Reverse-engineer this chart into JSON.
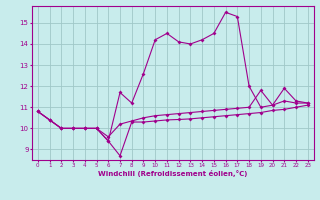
{
  "x": [
    0,
    1,
    2,
    3,
    4,
    5,
    6,
    7,
    8,
    9,
    10,
    11,
    12,
    13,
    14,
    15,
    16,
    17,
    18,
    19,
    20,
    21,
    22,
    23
  ],
  "curve1": [
    10.8,
    10.4,
    10.0,
    10.0,
    10.0,
    10.0,
    9.4,
    8.7,
    10.3,
    10.3,
    10.35,
    10.4,
    10.42,
    10.45,
    10.5,
    10.55,
    10.6,
    10.65,
    10.7,
    10.75,
    10.85,
    10.9,
    11.0,
    11.1
  ],
  "curve2": [
    10.8,
    10.4,
    10.0,
    10.0,
    10.0,
    10.0,
    9.4,
    11.7,
    11.2,
    12.6,
    14.2,
    14.5,
    14.1,
    14.0,
    14.2,
    14.5,
    15.5,
    15.3,
    12.0,
    11.0,
    11.1,
    11.9,
    11.3,
    11.2
  ],
  "curve3": [
    10.8,
    10.4,
    10.0,
    10.0,
    10.0,
    10.0,
    9.6,
    10.2,
    10.35,
    10.5,
    10.6,
    10.65,
    10.7,
    10.75,
    10.8,
    10.85,
    10.9,
    10.95,
    11.0,
    11.8,
    11.1,
    11.3,
    11.2,
    11.2
  ],
  "bg_color": "#c8ecec",
  "grid_color": "#a0c8c8",
  "line_color": "#a0008c",
  "xlabel": "Windchill (Refroidissement éolien,°C)",
  "xlim": [
    -0.5,
    23.5
  ],
  "ylim": [
    8.5,
    15.8
  ],
  "yticks": [
    9,
    10,
    11,
    12,
    13,
    14,
    15
  ],
  "xticks": [
    0,
    1,
    2,
    3,
    4,
    5,
    6,
    7,
    8,
    9,
    10,
    11,
    12,
    13,
    14,
    15,
    16,
    17,
    18,
    19,
    20,
    21,
    22,
    23
  ]
}
